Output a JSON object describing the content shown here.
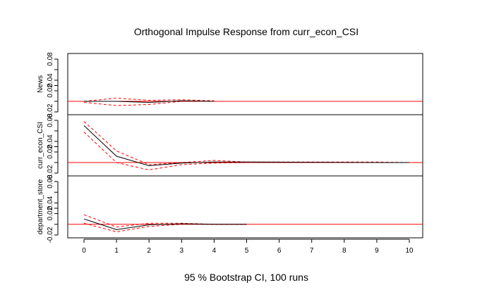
{
  "chart_data": {
    "type": "line",
    "title": "Orthogonal Impulse Response from curr_econ_CSI",
    "xlabel": "95 % Bootstrap CI,  100 runs",
    "x_ticks": [
      0,
      1,
      2,
      3,
      4,
      5,
      6,
      7,
      8,
      9,
      10
    ],
    "xlim": [
      0,
      10
    ],
    "zero_line_color": "#ff0000",
    "response_color": "#000000",
    "ci_color": "#ff0000",
    "panels": [
      {
        "ylabel": "News",
        "ylim": [
          -0.02,
          0.08
        ],
        "y_ticks": [
          -0.02,
          0,
          0.02,
          0.04,
          0.06,
          0.08
        ],
        "y_tick_labels": [
          "-0.02",
          "",
          "0.02",
          "",
          "0.04",
          "",
          "0.08"
        ],
        "y_tick_values": [
          -0.02,
          0,
          0.02,
          0.03,
          0.04,
          0.06,
          0.08
        ],
        "x": [
          0,
          1,
          2,
          3,
          4
        ],
        "response": [
          0.0,
          0.0,
          -0.002,
          0.001,
          0.0
        ],
        "lower": [
          -0.002,
          -0.008,
          -0.006,
          0.0,
          0.0
        ],
        "upper": [
          0.0,
          0.006,
          0.002,
          0.003,
          0.001
        ]
      },
      {
        "ylabel": "curr_econ_CSI",
        "ylim": [
          -0.02,
          0.08
        ],
        "y_ticks": [
          -0.02,
          0,
          0.02,
          0.04,
          0.06,
          0.08
        ],
        "y_tick_labels": [
          "-0.02",
          "",
          "0.02",
          "",
          "0.04",
          "",
          "0.08"
        ],
        "y_tick_values": [
          -0.02,
          0,
          0.02,
          0.03,
          0.04,
          0.06,
          0.08
        ],
        "x": [
          0,
          1,
          2,
          3,
          4,
          5,
          9,
          10
        ],
        "response": [
          0.07,
          0.012,
          -0.006,
          -0.001,
          0.001,
          0.001,
          0.0,
          0.0
        ],
        "lower": [
          0.058,
          0.0,
          -0.014,
          -0.004,
          -0.001,
          0.0,
          0.0,
          0.0
        ],
        "upper": [
          0.078,
          0.022,
          -0.004,
          0.0,
          0.004,
          0.001,
          0.001,
          0.0
        ]
      },
      {
        "ylabel": "department_store",
        "ylim": [
          -0.02,
          0.08
        ],
        "y_ticks": [
          -0.02,
          0,
          0.02,
          0.04,
          0.06,
          0.08
        ],
        "y_tick_labels": [
          "-0.02",
          "",
          "0.02",
          "",
          "0.04",
          "",
          "0.08"
        ],
        "y_tick_values": [
          -0.02,
          0,
          0.02,
          0.03,
          0.04,
          0.06,
          0.08
        ],
        "x": [
          0,
          1,
          2,
          3,
          4,
          5
        ],
        "response": [
          0.01,
          -0.01,
          -0.001,
          0.001,
          0.0,
          0.0
        ],
        "lower": [
          0.002,
          -0.014,
          -0.004,
          0.0,
          0.0,
          0.0
        ],
        "upper": [
          0.018,
          -0.005,
          0.002,
          0.002,
          0.0,
          0.0
        ]
      }
    ]
  }
}
